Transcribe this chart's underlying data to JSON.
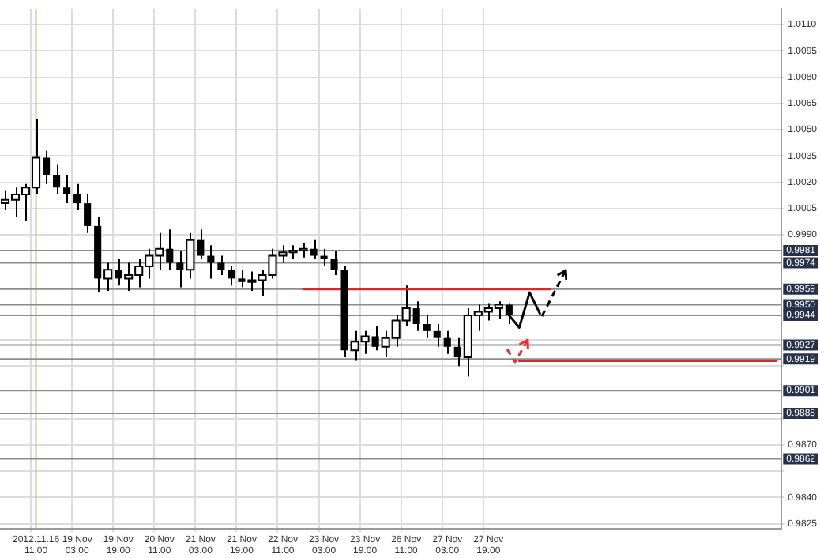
{
  "chart_data": {
    "type": "candlestick",
    "grid": true,
    "legend": false,
    "colors": [
      "#ffffff",
      "#ffffff",
      "#ffffff",
      "#ffffff",
      "#000000",
      "#000000",
      "#000000",
      "#000000",
      "#000000",
      "#000000",
      "#ffffff",
      "#000000",
      "#ffffff",
      "#ffffff",
      "#ffffff",
      "#ffffff",
      "#000000",
      "#000000",
      "#ffffff",
      "#000000",
      "#000000",
      "#000000",
      "#000000",
      "#000000",
      "#000000",
      "#ffffff",
      "#ffffff",
      "#ffffff",
      "#ffffff",
      "#ffffff",
      "#000000",
      "#000000",
      "#000000",
      "#000000",
      "#ffffff",
      "#ffffff",
      "#000000",
      "#ffffff",
      "#ffffff",
      "#ffffff",
      "#000000",
      "#000000",
      "#000000",
      "#000000",
      "#000000",
      "#ffffff",
      "#ffffff",
      "#ffffff",
      "#ffffff",
      "#000000",
      null,
      null,
      null,
      null,
      null,
      null,
      null,
      null,
      null,
      null,
      null,
      null,
      null,
      null,
      null,
      null,
      null,
      null,
      null,
      null,
      null,
      null,
      null,
      null,
      null,
      null
    ],
    "categories": [
      null,
      null,
      null,
      "2012.11.16 11:00",
      null,
      null,
      null,
      "19 Nov 03:00",
      null,
      null,
      null,
      "19 Nov 19:00",
      null,
      null,
      null,
      "20 Nov 11:00",
      null,
      null,
      null,
      "21 Nov 03:00",
      null,
      null,
      null,
      "21 Nov 19:00",
      null,
      null,
      null,
      "22 Nov 11:00",
      null,
      null,
      null,
      "23 Nov 03:00",
      null,
      null,
      null,
      "23 Nov 19:00",
      null,
      null,
      null,
      "26 Nov 11:00",
      null,
      null,
      null,
      "27 Nov 03:00",
      null,
      null,
      null,
      "27 Nov 19:00",
      null,
      null,
      null,
      null,
      null,
      null,
      null,
      null,
      null,
      null,
      null,
      null,
      null,
      null,
      null,
      null,
      null,
      null,
      null,
      null,
      null,
      null,
      null,
      null,
      null,
      null,
      null,
      null
    ],
    "ohlc": [
      [
        1.0008,
        1.0015,
        1.0004,
        1.001
      ],
      [
        1.001,
        1.0017,
        1.0,
        1.0013
      ],
      [
        1.0013,
        1.0019,
        0.9998,
        1.0017
      ],
      [
        1.0017,
        1.0056,
        1.0013,
        1.0034
      ],
      [
        1.0034,
        1.0038,
        1.0019,
        1.0024
      ],
      [
        1.0024,
        1.003,
        1.0013,
        1.0017
      ],
      [
        1.0017,
        1.0024,
        1.0008,
        1.0013
      ],
      [
        1.0013,
        1.0019,
        1.0004,
        1.0008
      ],
      [
        1.0008,
        1.0013,
        0.9991,
        0.9995
      ],
      [
        0.9995,
        1.0,
        0.9957,
        0.9965
      ],
      [
        0.9965,
        0.9974,
        0.9958,
        0.997
      ],
      [
        0.997,
        0.9976,
        0.9961,
        0.9965
      ],
      [
        0.9965,
        0.9974,
        0.9958,
        0.9967
      ],
      [
        0.9967,
        0.9976,
        0.996,
        0.9972
      ],
      [
        0.9972,
        0.9982,
        0.9965,
        0.9978
      ],
      [
        0.9978,
        0.9991,
        0.997,
        0.9982
      ],
      [
        0.9982,
        0.9993,
        0.997,
        0.9974
      ],
      [
        0.9974,
        0.9981,
        0.996,
        0.997
      ],
      [
        0.997,
        0.9991,
        0.9965,
        0.9987
      ],
      [
        0.9987,
        0.9993,
        0.9976,
        0.9978
      ],
      [
        0.9978,
        0.9984,
        0.9965,
        0.9974
      ],
      [
        0.9974,
        0.9978,
        0.9967,
        0.997
      ],
      [
        0.997,
        0.9972,
        0.9961,
        0.9965
      ],
      [
        0.9965,
        0.997,
        0.996,
        0.9963
      ],
      [
        0.9963,
        0.9969,
        0.9958,
        0.9964
      ],
      [
        0.9964,
        0.997,
        0.9955,
        0.9967
      ],
      [
        0.9967,
        0.9982,
        0.9965,
        0.9978
      ],
      [
        0.9978,
        0.9984,
        0.9974,
        0.998
      ],
      [
        0.998,
        0.9984,
        0.9976,
        0.9981
      ],
      [
        0.9981,
        0.9985,
        0.9977,
        0.9982
      ],
      [
        0.9982,
        0.9987,
        0.9976,
        0.9978
      ],
      [
        0.9978,
        0.9982,
        0.9972,
        0.9976
      ],
      [
        0.9976,
        0.9981,
        0.9967,
        0.997
      ],
      [
        0.997,
        0.9972,
        0.992,
        0.9924
      ],
      [
        0.9924,
        0.9935,
        0.9918,
        0.9929
      ],
      [
        0.9929,
        0.9935,
        0.9922,
        0.9932
      ],
      [
        0.9932,
        0.9938,
        0.9924,
        0.9926
      ],
      [
        0.9926,
        0.9935,
        0.992,
        0.9931
      ],
      [
        0.9931,
        0.9944,
        0.9926,
        0.9941
      ],
      [
        0.9941,
        0.9961,
        0.9938,
        0.9948
      ],
      [
        0.9948,
        0.9952,
        0.9935,
        0.9939
      ],
      [
        0.9939,
        0.9944,
        0.9931,
        0.9935
      ],
      [
        0.9935,
        0.9939,
        0.9926,
        0.9931
      ],
      [
        0.9931,
        0.9935,
        0.9922,
        0.9926
      ],
      [
        0.9926,
        0.9931,
        0.9915,
        0.992
      ],
      [
        0.992,
        0.9948,
        0.9909,
        0.9944
      ],
      [
        0.9944,
        0.995,
        0.9935,
        0.9946
      ],
      [
        0.9946,
        0.9951,
        0.9941,
        0.9948
      ],
      [
        0.9948,
        0.9952,
        0.9942,
        0.995
      ],
      [
        0.995,
        0.9951,
        0.9939,
        0.9944
      ],
      null,
      null,
      null,
      null,
      null,
      null,
      null,
      null,
      null,
      null,
      null,
      null,
      null,
      null,
      null,
      null,
      null,
      null,
      null,
      null,
      null,
      null,
      null,
      null,
      null,
      null
    ],
    "series": [
      {
        "type": "line",
        "color": "#000000",
        "line_style": "solid",
        "values": [
          null,
          null,
          null,
          null,
          null,
          null,
          null,
          null,
          null,
          null,
          null,
          null,
          null,
          null,
          null,
          null,
          null,
          null,
          null,
          null,
          null,
          null,
          null,
          null,
          null,
          null,
          null,
          null,
          null,
          null,
          null,
          null,
          null,
          null,
          null,
          null,
          null,
          null,
          null,
          null,
          null,
          null,
          null,
          null,
          null,
          null,
          null,
          null,
          null,
          0.9944,
          0.9937,
          0.9957,
          0.9945,
          null,
          null,
          null,
          null,
          null,
          null,
          null,
          null,
          null,
          null,
          null,
          null,
          null,
          null,
          null,
          null,
          null,
          null,
          null,
          null,
          null,
          null,
          null
        ]
      },
      {
        "type": "line",
        "color": "#d92a2a",
        "line_style": "solid",
        "values": [
          null,
          null,
          null,
          null,
          null,
          null,
          null,
          null,
          null,
          null,
          null,
          null,
          null,
          null,
          null,
          null,
          null,
          null,
          null,
          null,
          null,
          null,
          null,
          null,
          null,
          null,
          null,
          null,
          null,
          0.9959,
          0.9959,
          0.9959,
          0.9959,
          0.9959,
          0.9959,
          0.9959,
          0.9959,
          0.9959,
          0.9959,
          0.9959,
          0.9959,
          0.9959,
          0.9959,
          0.9959,
          0.9959,
          0.9959,
          0.9959,
          0.9959,
          0.9959,
          0.9959,
          0.9959,
          0.9959,
          0.9959,
          0.9959,
          null,
          null,
          null,
          null,
          null,
          null,
          null,
          null,
          null,
          null,
          null,
          null,
          null,
          null,
          null,
          null,
          null,
          null,
          null,
          null,
          null,
          null
        ]
      },
      {
        "type": "line",
        "color": "#d92a2a",
        "line_style": "solid",
        "values": [
          null,
          null,
          null,
          null,
          null,
          null,
          null,
          null,
          null,
          null,
          null,
          null,
          null,
          null,
          null,
          null,
          null,
          null,
          null,
          null,
          null,
          null,
          null,
          null,
          null,
          null,
          null,
          null,
          null,
          null,
          null,
          null,
          null,
          null,
          null,
          null,
          null,
          null,
          null,
          null,
          null,
          null,
          null,
          null,
          null,
          null,
          null,
          null,
          null,
          null,
          0.9918,
          0.9918,
          0.9918,
          0.9918,
          0.9918,
          0.9918,
          0.9918,
          0.9918,
          0.9918,
          0.9918,
          0.9918,
          0.9918,
          0.9918,
          0.9918,
          0.9918,
          0.9918,
          0.9918,
          0.9918,
          0.9918,
          0.9918,
          0.9918,
          0.9918,
          0.9918,
          0.9918,
          0.9918,
          0.9918
        ]
      }
    ],
    "ylim": [
      0.9822,
      1.0119
    ],
    "yticks": [
      {
        "value": 1.011,
        "label": "1.0110"
      },
      {
        "value": 1.0095,
        "label": "1.0095"
      },
      {
        "value": 1.008,
        "label": "1.0080"
      },
      {
        "value": 1.0065,
        "label": "1.0065"
      },
      {
        "value": 1.005,
        "label": "1.0050"
      },
      {
        "value": 1.0035,
        "label": "1.0035"
      },
      {
        "value": 1.002,
        "label": "1.0020"
      },
      {
        "value": 1.0005,
        "label": "1.0005"
      },
      {
        "value": 0.999,
        "label": "0.9990"
      },
      {
        "value": 0.993,
        "label": null
      },
      {
        "value": 0.9915,
        "label": null
      },
      {
        "value": 0.9885,
        "label": null
      },
      {
        "value": 0.987,
        "label": "0.9870"
      },
      {
        "value": 0.9855,
        "label": null
      },
      {
        "value": 0.984,
        "label": "0.9840"
      },
      {
        "value": 0.9825,
        "label": "0.9825"
      }
    ],
    "ref_lines": [
      {
        "axis": "x",
        "value": "2012.11.16 11:00",
        "color": "#d6b48a"
      },
      {
        "axis": "y",
        "value": 0.9981,
        "label": "0.9981",
        "color": "#8c8c8c"
      },
      {
        "axis": "y",
        "value": 0.9974,
        "label": "0.9974",
        "color": "#8c8c8c"
      },
      {
        "axis": "y",
        "value": 0.9959,
        "label": "0.9959",
        "color": "#8c8c8c"
      },
      {
        "axis": "y",
        "value": 0.995,
        "label": "0.9950",
        "color": "#8c8c8c"
      },
      {
        "axis": "y",
        "value": 0.9944,
        "label": "0.9944",
        "color": "#8c8c8c"
      },
      {
        "axis": "y",
        "value": 0.9927,
        "label": "0.9927",
        "color": "#8c8c8c"
      },
      {
        "axis": "y",
        "value": 0.9919,
        "label": "0.9919",
        "color": "#8c8c8c"
      },
      {
        "axis": "y",
        "value": 0.9901,
        "label": "0.9901",
        "color": "#8c8c8c"
      },
      {
        "axis": "y",
        "value": 0.9888,
        "label": "0.9888",
        "color": "#8c8c8c"
      },
      {
        "axis": "y",
        "value": 0.9862,
        "label": "0.9862",
        "color": "#8c8c8c"
      }
    ]
  }
}
